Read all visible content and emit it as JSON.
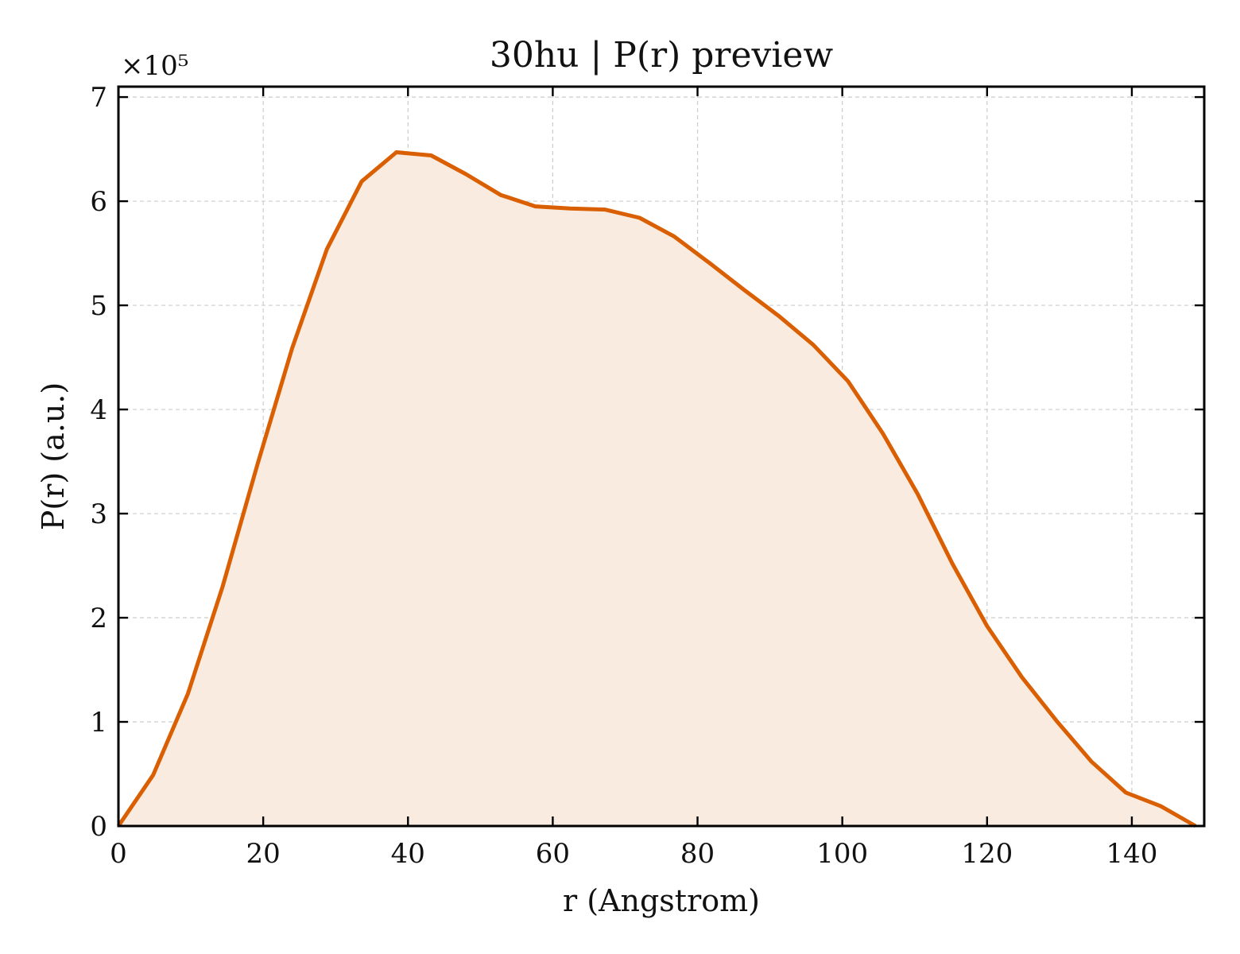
{
  "chart_data": {
    "type": "area",
    "title": "30hu | P(r) preview",
    "xlabel": "r (Angstrom)",
    "ylabel": "P(r) (a.u.)",
    "y_exponent_label": "×10⁵",
    "xlim": [
      0,
      150
    ],
    "ylim": [
      0,
      7.1
    ],
    "x_ticks": [
      0,
      20,
      40,
      60,
      80,
      100,
      120,
      140
    ],
    "y_ticks": [
      0,
      1,
      2,
      3,
      4,
      5,
      6,
      7
    ],
    "grid": true,
    "colors": {
      "line": "#d95f02",
      "fill": "#f9ebe0"
    },
    "series": [
      {
        "x": [
          0,
          4.8,
          9.6,
          14.4,
          19.2,
          24.0,
          28.8,
          33.6,
          38.4,
          43.2,
          48.0,
          52.8,
          57.6,
          62.4,
          67.2,
          72.0,
          76.8,
          81.6,
          86.4,
          91.2,
          96.0,
          100.8,
          105.6,
          110.4,
          115.2,
          120.0,
          124.8,
          129.6,
          134.4,
          139.2,
          144.0,
          148.8
        ],
        "y": [
          0.0,
          0.49,
          1.27,
          2.3,
          3.47,
          4.59,
          5.54,
          6.19,
          6.47,
          6.44,
          6.26,
          6.06,
          5.95,
          5.93,
          5.92,
          5.84,
          5.66,
          5.41,
          5.15,
          4.9,
          4.62,
          4.27,
          3.77,
          3.19,
          2.52,
          1.92,
          1.43,
          1.01,
          0.62,
          0.32,
          0.19,
          0.0
        ]
      }
    ]
  }
}
